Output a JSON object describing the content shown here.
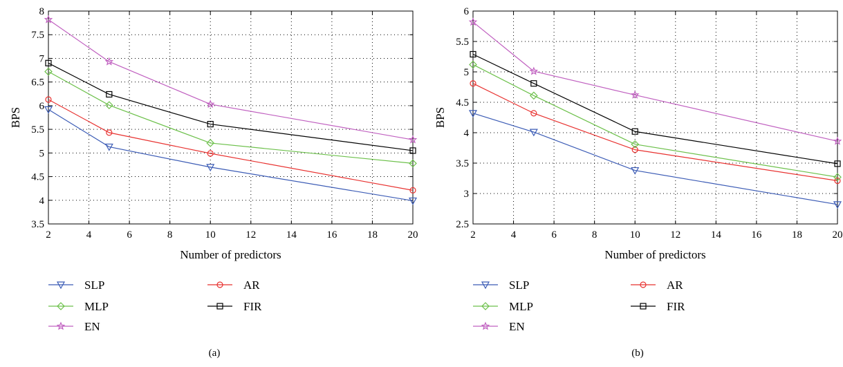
{
  "chart_data": [
    {
      "type": "line",
      "caption": "(a)",
      "xlabel": "Number of predictors",
      "ylabel": "BPS",
      "xlim": [
        2,
        20
      ],
      "ylim": [
        3.5,
        8
      ],
      "xticks": [
        2,
        4,
        6,
        8,
        10,
        12,
        14,
        16,
        18,
        20
      ],
      "yticks": [
        3.5,
        4,
        4.5,
        5,
        5.5,
        6,
        6.5,
        7,
        7.5,
        8
      ],
      "ytick_labels": [
        "3.5",
        "4",
        "4.5",
        "5",
        "5.5",
        "6",
        "6.5",
        "7",
        "7.5",
        "8"
      ],
      "grid": true,
      "legend_position": "below",
      "x": [
        2,
        5,
        10,
        20
      ],
      "series": [
        {
          "name": "SLP",
          "values": [
            5.92,
            5.13,
            4.7,
            3.99
          ],
          "color": "#3b5bb5",
          "marker": "triangle-down"
        },
        {
          "name": "AR",
          "values": [
            6.13,
            5.43,
            4.99,
            4.21
          ],
          "color": "#e8312f",
          "marker": "circle"
        },
        {
          "name": "MLP",
          "values": [
            6.72,
            6.01,
            5.21,
            4.78
          ],
          "color": "#6cc04a",
          "marker": "diamond"
        },
        {
          "name": "FIR",
          "values": [
            6.9,
            6.24,
            5.61,
            5.05
          ],
          "color": "#000000",
          "marker": "square"
        },
        {
          "name": "EN",
          "values": [
            7.82,
            6.93,
            6.03,
            5.28
          ],
          "color": "#c060c0",
          "marker": "star"
        }
      ]
    },
    {
      "type": "line",
      "caption": "(b)",
      "xlabel": "Number of predictors",
      "ylabel": "BPS",
      "xlim": [
        2,
        20
      ],
      "ylim": [
        2.5,
        6
      ],
      "xticks": [
        2,
        4,
        6,
        8,
        10,
        12,
        14,
        16,
        18,
        20
      ],
      "yticks": [
        2.5,
        3,
        3.5,
        4,
        4.5,
        5,
        5.5,
        6
      ],
      "ytick_labels": [
        "2.5",
        "3",
        "3.5",
        "4",
        "4.5",
        "5",
        "5.5",
        "6"
      ],
      "grid": true,
      "legend_position": "below",
      "x": [
        2,
        5,
        10,
        20
      ],
      "series": [
        {
          "name": "SLP",
          "values": [
            4.32,
            4.01,
            3.38,
            2.82
          ],
          "color": "#3b5bb5",
          "marker": "triangle-down"
        },
        {
          "name": "AR",
          "values": [
            4.81,
            4.32,
            3.72,
            3.21
          ],
          "color": "#e8312f",
          "marker": "circle"
        },
        {
          "name": "MLP",
          "values": [
            5.12,
            4.61,
            3.81,
            3.27
          ],
          "color": "#6cc04a",
          "marker": "diamond"
        },
        {
          "name": "FIR",
          "values": [
            5.29,
            4.81,
            4.02,
            3.49
          ],
          "color": "#000000",
          "marker": "square"
        },
        {
          "name": "EN",
          "values": [
            5.82,
            5.01,
            4.62,
            3.86
          ],
          "color": "#c060c0",
          "marker": "star"
        }
      ]
    }
  ]
}
